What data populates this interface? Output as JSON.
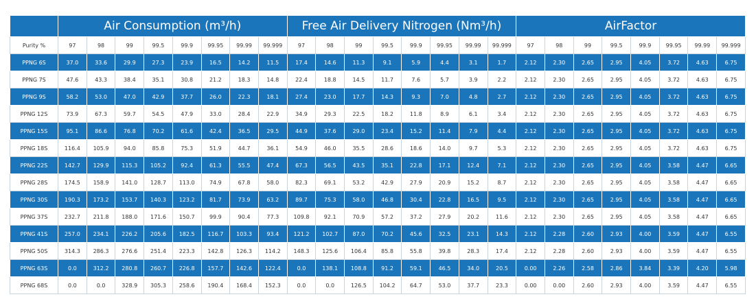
{
  "header": {
    "groups": [
      "Air Consumption (m³/h)",
      "Free Air Delivery Nitrogen (Nm³/h)",
      "AirFactor"
    ]
  },
  "table": {
    "purity_row": [
      "Purity %",
      "97",
      "98",
      "99",
      "99.5",
      "99.9",
      "99.95",
      "99.99",
      "99.999",
      "97",
      "98",
      "99",
      "99.5",
      "99.9",
      "99.95",
      "99.99",
      "99.999",
      "97",
      "98",
      "99",
      "99.5",
      "99.9",
      "99.95",
      "99.99",
      "99.999"
    ],
    "rows": [
      [
        "PPNG 6S",
        "37.0",
        "33.6",
        "29.9",
        "27.3",
        "23.9",
        "16.5",
        "14.2",
        "11.5",
        "17.4",
        "14.6",
        "11.3",
        "9.1",
        "5.9",
        "4.4",
        "3.1",
        "1.7",
        "2.12",
        "2.30",
        "2.65",
        "2.95",
        "4.05",
        "3.72",
        "4.63",
        "6.75"
      ],
      [
        "PPNG 7S",
        "47.6",
        "43.3",
        "38.4",
        "35.1",
        "30.8",
        "21.2",
        "18.3",
        "14.8",
        "22.4",
        "18.8",
        "14.5",
        "11.7",
        "7.6",
        "5.7",
        "3.9",
        "2.2",
        "2.12",
        "2.30",
        "2.65",
        "2.95",
        "4.05",
        "3.72",
        "4.63",
        "6.75"
      ],
      [
        "PPNG 9S",
        "58.2",
        "53.0",
        "47.0",
        "42.9",
        "37.7",
        "26.0",
        "22.3",
        "18.1",
        "27.4",
        "23.0",
        "17.7",
        "14.3",
        "9.3",
        "7.0",
        "4.8",
        "2.7",
        "2.12",
        "2.30",
        "2.65",
        "2.95",
        "4.05",
        "3.72",
        "4.63",
        "6.75"
      ],
      [
        "PPNG 12S",
        "73.9",
        "67.3",
        "59.7",
        "54.5",
        "47.9",
        "33.0",
        "28.4",
        "22.9",
        "34.9",
        "29.3",
        "22.5",
        "18.2",
        "11.8",
        "8.9",
        "6.1",
        "3.4",
        "2.12",
        "2.30",
        "2.65",
        "2.95",
        "4.05",
        "3.72",
        "4.63",
        "6.75"
      ],
      [
        "PPNG 15S",
        "95.1",
        "86.6",
        "76.8",
        "70.2",
        "61.6",
        "42.4",
        "36.5",
        "29.5",
        "44.9",
        "37.6",
        "29.0",
        "23.4",
        "15.2",
        "11.4",
        "7.9",
        "4.4",
        "2.12",
        "2.30",
        "2.65",
        "2.95",
        "4.05",
        "3.72",
        "4.63",
        "6.75"
      ],
      [
        "PPNG 18S",
        "116.4",
        "105.9",
        "94.0",
        "85.8",
        "75.3",
        "51.9",
        "44.7",
        "36.1",
        "54.9",
        "46.0",
        "35.5",
        "28.6",
        "18.6",
        "14.0",
        "9.7",
        "5.3",
        "2.12",
        "2.30",
        "2.65",
        "2.95",
        "4.05",
        "3.72",
        "4.63",
        "6.75"
      ],
      [
        "PPNG 22S",
        "142.7",
        "129.9",
        "115.3",
        "105.2",
        "92.4",
        "61.3",
        "55.5",
        "47.4",
        "67.3",
        "56.5",
        "43.5",
        "35.1",
        "22.8",
        "17.1",
        "12.4",
        "7.1",
        "2.12",
        "2.30",
        "2.65",
        "2.95",
        "4.05",
        "3.58",
        "4.47",
        "6.65"
      ],
      [
        "PPNG 28S",
        "174.5",
        "158.9",
        "141.0",
        "128.7",
        "113.0",
        "74.9",
        "67.8",
        "58.0",
        "82.3",
        "69.1",
        "53.2",
        "42.9",
        "27.9",
        "20.9",
        "15.2",
        "8.7",
        "2.12",
        "2.30",
        "2.65",
        "2.95",
        "4.05",
        "3.58",
        "4.47",
        "6.65"
      ],
      [
        "PPNG 30S",
        "190.3",
        "173.2",
        "153.7",
        "140.3",
        "123.2",
        "81.7",
        "73.9",
        "63.2",
        "89.7",
        "75.3",
        "58.0",
        "46.8",
        "30.4",
        "22.8",
        "16.5",
        "9.5",
        "2.12",
        "2.30",
        "2.65",
        "2.95",
        "4.05",
        "3.58",
        "4.47",
        "6.65"
      ],
      [
        "PPNG 37S",
        "232.7",
        "211.8",
        "188.0",
        "171.6",
        "150.7",
        "99.9",
        "90.4",
        "77.3",
        "109.8",
        "92.1",
        "70.9",
        "57.2",
        "37.2",
        "27.9",
        "20.2",
        "11.6",
        "2.12",
        "2.30",
        "2.65",
        "2.95",
        "4.05",
        "3.58",
        "4.47",
        "6.65"
      ],
      [
        "PPNG 41S",
        "257.0",
        "234.1",
        "226.2",
        "205.6",
        "182.5",
        "116.7",
        "103.3",
        "93.4",
        "121.2",
        "102.7",
        "87.0",
        "70.2",
        "45.6",
        "32.5",
        "23.1",
        "14.3",
        "2.12",
        "2.28",
        "2.60",
        "2.93",
        "4.00",
        "3.59",
        "4.47",
        "6.55"
      ],
      [
        "PPNG 50S",
        "314.3",
        "286.3",
        "276.6",
        "251.4",
        "223.3",
        "142.8",
        "126.3",
        "114.2",
        "148.3",
        "125.6",
        "106.4",
        "85.8",
        "55.8",
        "39.8",
        "28.3",
        "17.4",
        "2.12",
        "2.28",
        "2.60",
        "2.93",
        "4.00",
        "3.59",
        "4.47",
        "6.55"
      ],
      [
        "PPNG 63S",
        "0.0",
        "312.2",
        "280.8",
        "260.7",
        "226.8",
        "157.7",
        "142.6",
        "122.4",
        "0.0",
        "138.1",
        "108.8",
        "91.2",
        "59.1",
        "46.5",
        "34.0",
        "20.5",
        "0.00",
        "2.26",
        "2.58",
        "2.86",
        "3.84",
        "3.39",
        "4.20",
        "5.98"
      ],
      [
        "PPNG 68S",
        "0.0",
        "0.0",
        "328.9",
        "305.3",
        "258.6",
        "190.4",
        "168.4",
        "152.3",
        "0.0",
        "0.0",
        "126.5",
        "104.2",
        "64.7",
        "53.0",
        "37.7",
        "23.3",
        "0.00",
        "0.00",
        "2.60",
        "2.93",
        "4.00",
        "3.59",
        "4.47",
        "6.55"
      ]
    ]
  }
}
